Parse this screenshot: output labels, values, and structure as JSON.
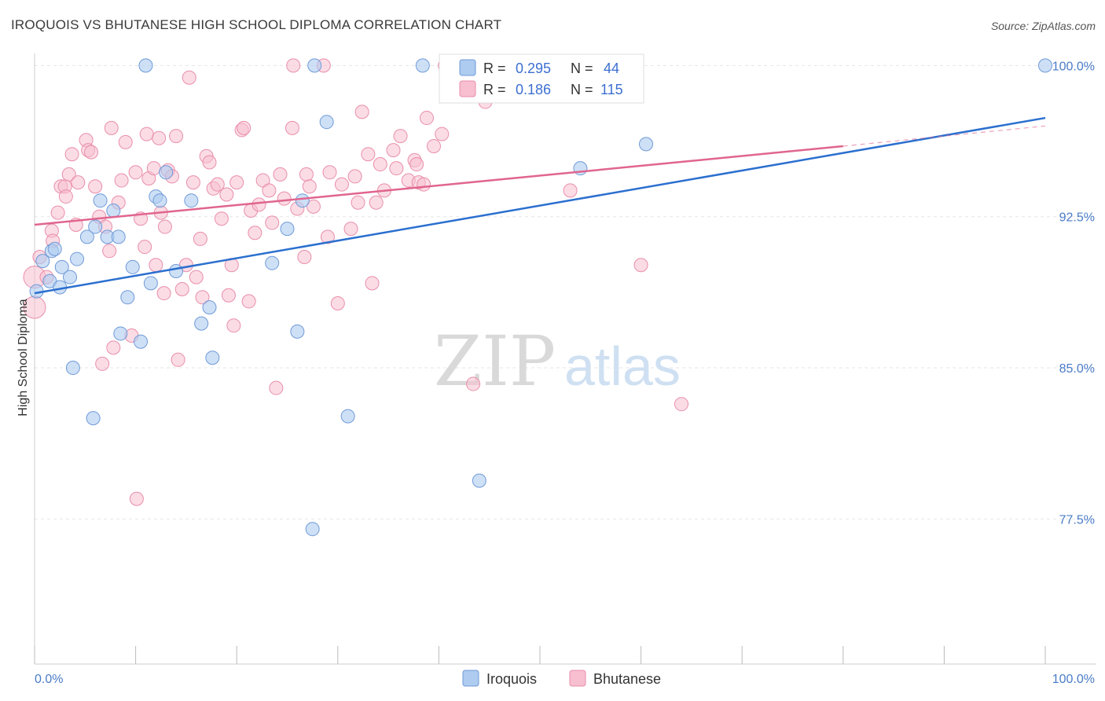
{
  "title": "IROQUOIS VS BHUTANESE HIGH SCHOOL DIPLOMA CORRELATION CHART",
  "source": "Source: ZipAtlas.com",
  "watermark": {
    "zip": "ZIP",
    "atlas": "atlas"
  },
  "colors": {
    "iroquois_fill": "#aecbf0",
    "iroquois_stroke": "#6f9ad8",
    "iroquois_line": "#2b6fcf",
    "bhutanese_fill": "#f7bfd0",
    "bhutanese_stroke": "#e98eab",
    "bhutanese_line": "#e0658f",
    "tick_color": "#4a7cc7",
    "grid": "#e6e6e6"
  },
  "legend": {
    "r_label": "R =",
    "n_label": "N =",
    "iroquois": {
      "r": "0.295",
      "n": "44"
    },
    "bhutanese": {
      "r": "0.186",
      "n": "115"
    }
  },
  "chart_data": {
    "type": "scatter",
    "title": "IROQUOIS VS BHUTANESE HIGH SCHOOL DIPLOMA CORRELATION CHART",
    "xlabel": "",
    "ylabel": "High School Diploma",
    "xlim": [
      0,
      100
    ],
    "ylim": [
      70.3,
      100.6
    ],
    "x_tick_labels": [
      "0.0%",
      "100.0%"
    ],
    "y_ticks": [
      77.5,
      85.0,
      92.5,
      100.0
    ],
    "y_tick_labels": [
      "77.5%",
      "85.0%",
      "92.5%",
      "100.0%"
    ],
    "grid": true,
    "legend_position": "top-center",
    "series": [
      {
        "name": "Iroquois",
        "points": [
          [
            0.2,
            88.8
          ],
          [
            0.8,
            90.3
          ],
          [
            1.5,
            89.3
          ],
          [
            1.7,
            90.8
          ],
          [
            2.0,
            90.9
          ],
          [
            2.5,
            89.0
          ],
          [
            2.7,
            90.0
          ],
          [
            3.5,
            89.5
          ],
          [
            3.8,
            85.0
          ],
          [
            4.2,
            90.4
          ],
          [
            5.2,
            91.5
          ],
          [
            5.8,
            82.5
          ],
          [
            6.0,
            92.0
          ],
          [
            6.5,
            93.3
          ],
          [
            7.2,
            91.5
          ],
          [
            7.8,
            92.8
          ],
          [
            8.3,
            91.5
          ],
          [
            8.5,
            86.7
          ],
          [
            9.2,
            88.5
          ],
          [
            9.7,
            90.0
          ],
          [
            10.5,
            86.3
          ],
          [
            11.0,
            100.0
          ],
          [
            11.5,
            89.2
          ],
          [
            12.0,
            93.5
          ],
          [
            12.4,
            93.3
          ],
          [
            13.0,
            94.7
          ],
          [
            14.0,
            89.8
          ],
          [
            15.5,
            93.3
          ],
          [
            16.5,
            87.2
          ],
          [
            17.3,
            88.0
          ],
          [
            17.6,
            85.5
          ],
          [
            23.5,
            90.2
          ],
          [
            25.0,
            91.9
          ],
          [
            26.0,
            86.8
          ],
          [
            26.5,
            93.3
          ],
          [
            27.5,
            77.0
          ],
          [
            27.7,
            100.0
          ],
          [
            28.9,
            97.2
          ],
          [
            31.0,
            82.6
          ],
          [
            38.4,
            100.0
          ],
          [
            44.0,
            79.4
          ],
          [
            54.0,
            94.9
          ],
          [
            60.5,
            96.1
          ],
          [
            100.0,
            100.0
          ]
        ]
      },
      {
        "name": "Bhutanese",
        "points": [
          [
            0.0,
            88.0
          ],
          [
            0.0,
            89.5
          ],
          [
            0.5,
            90.5
          ],
          [
            1.2,
            89.5
          ],
          [
            1.7,
            91.8
          ],
          [
            1.8,
            91.3
          ],
          [
            2.3,
            92.7
          ],
          [
            2.6,
            94.0
          ],
          [
            3.0,
            94.0
          ],
          [
            3.1,
            93.5
          ],
          [
            3.4,
            94.6
          ],
          [
            3.7,
            95.6
          ],
          [
            4.1,
            92.1
          ],
          [
            4.3,
            94.2
          ],
          [
            5.1,
            96.3
          ],
          [
            5.3,
            95.8
          ],
          [
            5.6,
            95.7
          ],
          [
            6.0,
            94.0
          ],
          [
            6.4,
            92.5
          ],
          [
            6.7,
            85.2
          ],
          [
            7.0,
            92.0
          ],
          [
            7.4,
            90.8
          ],
          [
            7.6,
            96.9
          ],
          [
            7.8,
            86.0
          ],
          [
            8.3,
            93.2
          ],
          [
            8.6,
            94.3
          ],
          [
            9.0,
            96.2
          ],
          [
            9.6,
            86.6
          ],
          [
            10.0,
            94.7
          ],
          [
            10.1,
            78.5
          ],
          [
            10.5,
            92.4
          ],
          [
            10.9,
            91.0
          ],
          [
            11.1,
            96.6
          ],
          [
            11.3,
            94.4
          ],
          [
            11.8,
            94.9
          ],
          [
            12.0,
            90.1
          ],
          [
            12.3,
            96.4
          ],
          [
            12.5,
            92.7
          ],
          [
            12.8,
            88.7
          ],
          [
            12.9,
            92.0
          ],
          [
            13.2,
            94.8
          ],
          [
            13.6,
            94.5
          ],
          [
            14.0,
            96.5
          ],
          [
            14.2,
            85.4
          ],
          [
            14.6,
            88.9
          ],
          [
            15.0,
            90.1
          ],
          [
            15.3,
            99.4
          ],
          [
            15.7,
            94.2
          ],
          [
            16.0,
            89.5
          ],
          [
            16.4,
            91.4
          ],
          [
            16.6,
            88.5
          ],
          [
            17.0,
            95.5
          ],
          [
            17.3,
            95.2
          ],
          [
            17.7,
            93.9
          ],
          [
            18.1,
            94.1
          ],
          [
            18.5,
            92.4
          ],
          [
            19.0,
            93.6
          ],
          [
            19.2,
            88.6
          ],
          [
            19.5,
            90.1
          ],
          [
            19.7,
            87.1
          ],
          [
            20.0,
            94.2
          ],
          [
            20.5,
            96.8
          ],
          [
            20.7,
            96.9
          ],
          [
            21.2,
            88.3
          ],
          [
            21.4,
            92.8
          ],
          [
            21.8,
            91.7
          ],
          [
            22.2,
            93.1
          ],
          [
            22.6,
            94.3
          ],
          [
            23.2,
            93.8
          ],
          [
            23.5,
            92.2
          ],
          [
            23.9,
            84.0
          ],
          [
            24.3,
            94.6
          ],
          [
            24.7,
            93.4
          ],
          [
            25.5,
            96.9
          ],
          [
            25.6,
            100.0
          ],
          [
            26.0,
            92.9
          ],
          [
            26.7,
            90.5
          ],
          [
            26.9,
            94.6
          ],
          [
            27.2,
            94.0
          ],
          [
            27.6,
            93.0
          ],
          [
            28.6,
            100.0
          ],
          [
            29.0,
            91.5
          ],
          [
            29.2,
            94.7
          ],
          [
            30.0,
            88.2
          ],
          [
            30.4,
            94.1
          ],
          [
            31.3,
            91.9
          ],
          [
            31.7,
            94.5
          ],
          [
            32.0,
            93.2
          ],
          [
            32.4,
            97.7
          ],
          [
            33.0,
            95.6
          ],
          [
            33.4,
            89.2
          ],
          [
            33.8,
            93.2
          ],
          [
            34.2,
            95.1
          ],
          [
            34.6,
            93.8
          ],
          [
            35.5,
            95.8
          ],
          [
            35.8,
            94.9
          ],
          [
            36.2,
            96.5
          ],
          [
            37.0,
            94.3
          ],
          [
            37.6,
            95.3
          ],
          [
            37.8,
            95.1
          ],
          [
            38.0,
            94.2
          ],
          [
            38.5,
            94.1
          ],
          [
            38.8,
            97.4
          ],
          [
            39.5,
            96.0
          ],
          [
            40.3,
            96.6
          ],
          [
            40.6,
            100.0
          ],
          [
            42.0,
            98.5
          ],
          [
            42.5,
            99.0
          ],
          [
            43.4,
            84.2
          ],
          [
            44.6,
            98.2
          ],
          [
            44.8,
            100.0
          ],
          [
            53.0,
            93.8
          ],
          [
            60.0,
            90.1
          ],
          [
            64.0,
            83.2
          ],
          [
            46.0,
            99.5
          ]
        ]
      }
    ],
    "trend_lines": [
      {
        "name": "Iroquois",
        "x": [
          0,
          100
        ],
        "y": [
          88.7,
          97.4
        ]
      },
      {
        "name": "Bhutanese",
        "x": [
          0,
          80
        ],
        "y": [
          92.1,
          96.0
        ],
        "dashed_extension": [
          80,
          100,
          96.0,
          97.0
        ]
      }
    ]
  }
}
